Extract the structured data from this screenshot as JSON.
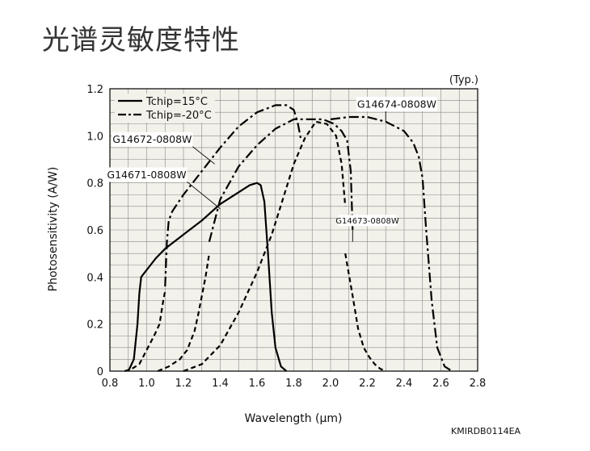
{
  "page": {
    "title": "光谱灵敏度特性",
    "figure_code": "KMIRDB0114EA"
  },
  "chart_data": {
    "type": "line",
    "title": "",
    "xlabel": "Wavelength (μm)",
    "ylabel": "Photosensitivity (A/W)",
    "note": "(Typ.)",
    "xlim": [
      0.8,
      2.8
    ],
    "ylim": [
      0,
      1.2
    ],
    "xticks": [
      "0.8",
      "1.0",
      "1.2",
      "1.4",
      "1.6",
      "1.8",
      "2.0",
      "2.2",
      "2.4",
      "2.6",
      "2.8"
    ],
    "yticks": [
      "0",
      "0.2",
      "0.4",
      "0.6",
      "0.8",
      "1.0",
      "1.2"
    ],
    "grid": true,
    "legend": {
      "position": "top-left",
      "entries": [
        {
          "label": "Tchip=15°C",
          "style": "solid"
        },
        {
          "label": "Tchip=-20°C",
          "style": "dashdot"
        }
      ]
    },
    "series": [
      {
        "name": "G14671-0808W",
        "temp": "15",
        "style": "solid",
        "x": [
          0.9,
          0.93,
          0.95,
          0.96,
          0.97,
          1.0,
          1.05,
          1.1,
          1.2,
          1.3,
          1.4,
          1.5,
          1.56,
          1.6,
          1.62,
          1.64,
          1.66,
          1.68,
          1.7,
          1.73,
          1.76
        ],
        "y": [
          0.0,
          0.05,
          0.2,
          0.33,
          0.4,
          0.43,
          0.48,
          0.52,
          0.58,
          0.64,
          0.71,
          0.76,
          0.79,
          0.8,
          0.79,
          0.72,
          0.5,
          0.25,
          0.1,
          0.02,
          0.0
        ]
      },
      {
        "name": "G14671-0808W",
        "temp": "-20",
        "style": "dashed",
        "x": [
          0.88,
          0.92,
          0.96,
          1.0,
          1.04,
          1.07,
          1.09,
          1.1
        ],
        "y": [
          0.0,
          0.01,
          0.03,
          0.09,
          0.15,
          0.2,
          0.3,
          0.34
        ]
      },
      {
        "name": "G14672-0808W",
        "temp": "15",
        "style": "dashdot",
        "x": [
          1.1,
          1.11,
          1.12,
          1.14,
          1.2,
          1.3,
          1.4,
          1.5,
          1.6,
          1.7,
          1.76,
          1.8,
          1.82,
          1.84
        ],
        "y": [
          0.36,
          0.55,
          0.64,
          0.68,
          0.75,
          0.85,
          0.95,
          1.04,
          1.1,
          1.13,
          1.13,
          1.11,
          1.06,
          0.98
        ]
      },
      {
        "name": "G14672-0808W",
        "temp": "-20",
        "style": "dashed",
        "x": [
          1.06,
          1.12,
          1.18,
          1.22,
          1.26,
          1.28,
          1.32,
          1.34
        ],
        "y": [
          0.0,
          0.02,
          0.05,
          0.09,
          0.17,
          0.24,
          0.4,
          0.5
        ]
      },
      {
        "name": "G14673-0808W",
        "temp": "15",
        "style": "dashdot",
        "x": [
          1.34,
          1.4,
          1.5,
          1.6,
          1.7,
          1.8,
          1.88,
          1.96,
          2.02,
          2.06,
          2.09,
          2.11,
          2.12
        ],
        "y": [
          0.55,
          0.73,
          0.87,
          0.96,
          1.03,
          1.07,
          1.07,
          1.07,
          1.05,
          1.02,
          0.98,
          0.85,
          0.6
        ]
      },
      {
        "name": "G14673-0808W",
        "temp": "-20",
        "style": "dashed",
        "x": [
          1.2,
          1.3,
          1.4,
          1.5,
          1.6,
          1.68,
          1.74,
          1.8,
          1.86,
          1.92,
          1.98,
          2.03,
          2.06,
          2.08
        ],
        "y": [
          0.0,
          0.03,
          0.11,
          0.25,
          0.42,
          0.58,
          0.73,
          0.88,
          0.99,
          1.06,
          1.05,
          1.0,
          0.88,
          0.7
        ]
      },
      {
        "name": "G14674-0808W",
        "temp": "15",
        "style": "dashdot",
        "x": [
          2.0,
          2.1,
          2.2,
          2.3,
          2.4,
          2.45,
          2.48,
          2.5,
          2.52,
          2.55,
          2.58,
          2.62,
          2.66
        ],
        "y": [
          1.07,
          1.08,
          1.08,
          1.06,
          1.02,
          0.97,
          0.91,
          0.82,
          0.6,
          0.3,
          0.1,
          0.02,
          0.0
        ]
      },
      {
        "name": "G14674-0808W",
        "temp": "-20",
        "style": "dashed",
        "x": [
          2.08,
          2.12,
          2.15,
          2.18,
          2.21,
          2.24,
          2.27,
          2.3
        ],
        "y": [
          0.5,
          0.32,
          0.18,
          0.1,
          0.06,
          0.03,
          0.01,
          0.0
        ]
      }
    ],
    "annotations": [
      {
        "text": "G14672-0808W",
        "box_x": 1.03,
        "box_y": 0.985,
        "arrow_to": [
          1.37,
          0.88
        ]
      },
      {
        "text": "G14671-0808W",
        "box_x": 1.0,
        "box_y": 0.835,
        "arrow_to": [
          1.4,
          0.69
        ]
      },
      {
        "text": "G14674-0808W",
        "box_x": 2.36,
        "box_y": 1.135,
        "arrow_to": [
          2.3,
          1.06
        ]
      },
      {
        "text": "G14673-0808W",
        "box_x": 2.2,
        "box_y": 0.64,
        "arrow_to": [
          2.12,
          0.55
        ]
      }
    ]
  }
}
